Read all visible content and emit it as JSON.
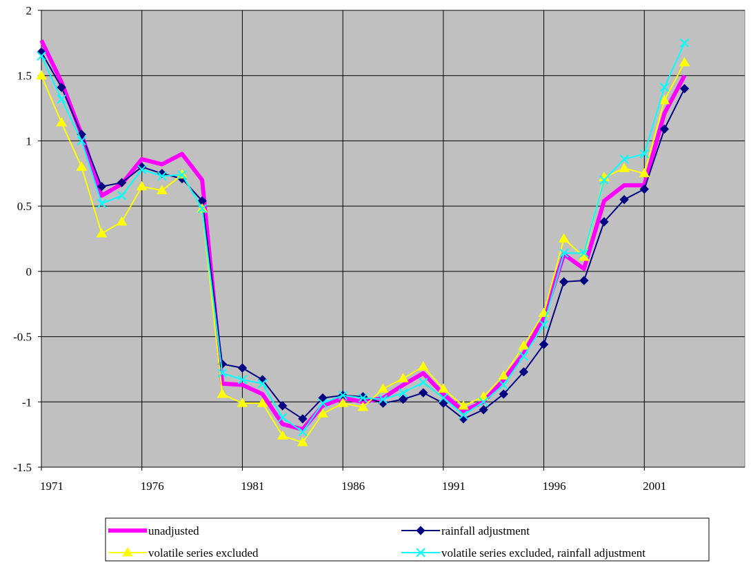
{
  "chart_data": {
    "type": "line",
    "title": "",
    "xlabel": "",
    "ylabel": "",
    "ylim": [
      -1.5,
      2
    ],
    "xlim": [
      1971,
      2006
    ],
    "yticks": [
      "2",
      "1.5",
      "1",
      "0.5",
      "0",
      "-0.5",
      "-1",
      "-1.5"
    ],
    "ytick_values": [
      2,
      1.5,
      1,
      0.5,
      0,
      -0.5,
      -1,
      -1.5
    ],
    "xticks": [
      "1971",
      "1976",
      "1981",
      "1986",
      "1991",
      "1996",
      "2001"
    ],
    "xtick_values": [
      1971,
      1976,
      1981,
      1986,
      1991,
      1996,
      2001
    ],
    "grid": true,
    "plot_background": "#c0c0c0",
    "legend_position": "bottom",
    "x": [
      1971,
      1972,
      1973,
      1974,
      1975,
      1976,
      1977,
      1978,
      1979,
      1980,
      1981,
      1982,
      1983,
      1984,
      1985,
      1986,
      1987,
      1988,
      1989,
      1990,
      1991,
      1992,
      1993,
      1994,
      1995,
      1996,
      1997,
      1998,
      1999,
      2000,
      2001,
      2002,
      2003
    ],
    "series": [
      {
        "name": "unadjusted",
        "color": "#ff00ff",
        "marker": "none",
        "width": 6,
        "values": [
          1.77,
          1.45,
          1.05,
          0.58,
          0.67,
          0.86,
          0.82,
          0.9,
          0.7,
          -0.86,
          -0.87,
          -0.94,
          -1.17,
          -1.21,
          -1.03,
          -0.97,
          -1.0,
          -0.97,
          -0.87,
          -0.78,
          -0.94,
          -1.07,
          -1.0,
          -0.83,
          -0.63,
          -0.35,
          0.13,
          0.02,
          0.54,
          0.66,
          0.66,
          1.21,
          1.5
        ]
      },
      {
        "name": "rainfall adjustment",
        "color": "#000080",
        "marker": "diamond",
        "width": 2,
        "values": [
          1.68,
          1.41,
          1.05,
          0.65,
          0.68,
          0.8,
          0.75,
          0.71,
          0.54,
          -0.71,
          -0.74,
          -0.83,
          -1.03,
          -1.13,
          -0.97,
          -0.95,
          -0.96,
          -1.01,
          -0.98,
          -0.93,
          -1.01,
          -1.13,
          -1.06,
          -0.94,
          -0.77,
          -0.56,
          -0.08,
          -0.07,
          0.38,
          0.55,
          0.63,
          1.09,
          1.4
        ]
      },
      {
        "name": "volatile series excluded",
        "color": "#ffff00",
        "marker": "triangle",
        "width": 2,
        "values": [
          1.5,
          1.14,
          0.8,
          0.29,
          0.38,
          0.65,
          0.62,
          0.74,
          0.48,
          -0.94,
          -1.01,
          -1.01,
          -1.26,
          -1.31,
          -1.09,
          -1.01,
          -1.04,
          -0.9,
          -0.82,
          -0.73,
          -0.9,
          -1.03,
          -0.96,
          -0.8,
          -0.57,
          -0.32,
          0.25,
          0.11,
          0.72,
          0.79,
          0.75,
          1.31,
          1.6
        ]
      },
      {
        "name": "volatile series excluded, rainfall adjustment",
        "color": "#00ffff",
        "marker": "x",
        "width": 2,
        "values": [
          1.65,
          1.32,
          1.0,
          0.52,
          0.58,
          0.78,
          0.73,
          0.74,
          0.48,
          -0.78,
          -0.83,
          -0.86,
          -1.12,
          -1.23,
          -1.01,
          -0.95,
          -0.97,
          -0.98,
          -0.93,
          -0.85,
          -0.97,
          -1.1,
          -1.0,
          -0.87,
          -0.65,
          -0.41,
          0.14,
          0.14,
          0.7,
          0.86,
          0.9,
          1.41,
          1.75
        ]
      }
    ]
  }
}
